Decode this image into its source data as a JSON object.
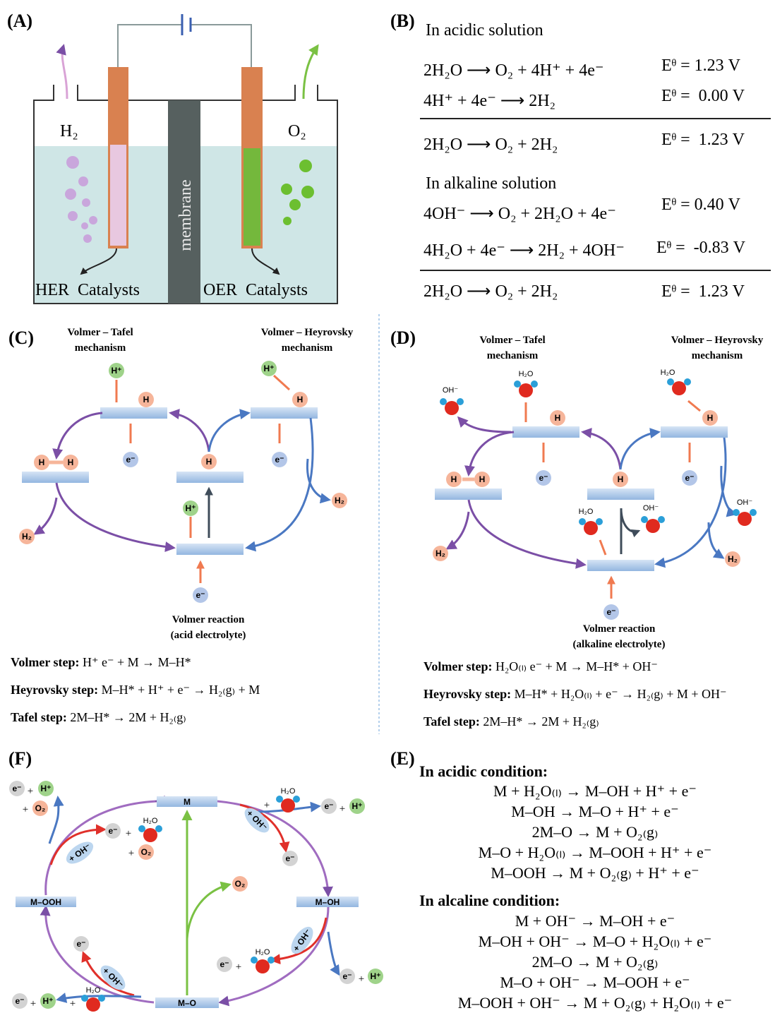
{
  "panel_a": {
    "label": "(A)",
    "h2": "H₂",
    "o2": "O₂",
    "membrane": "membrane",
    "her": "HER  Catalysts",
    "oer": "OER  Catalysts"
  },
  "panel_b": {
    "label": "(B)",
    "acidic_heading": "In acidic solution",
    "acidic": [
      {
        "equation": "2H₂O ⟶ O₂ + 4H⁺ + 4e⁻",
        "potential": "Eᶿ = 1.23 V"
      },
      {
        "equation": "4H⁺ + 4e⁻ ⟶ 2H₂",
        "potential": "Eᶿ =  0.00 V"
      }
    ],
    "acidic_total": {
      "equation": "2H₂O ⟶ O₂ + 2H₂",
      "potential": "Eᶿ =  1.23 V"
    },
    "alkaline_heading": "In alkaline solution",
    "alkaline": [
      {
        "equation": "4OH⁻ ⟶ O₂ + 2H₂O + 4e⁻",
        "potential": "Eᶿ = 0.40 V"
      },
      {
        "equation": "4H₂O + 4e⁻ ⟶ 2H₂ + 4OH⁻",
        "potential": "Eᶿ =  -0.83 V"
      }
    ],
    "alkaline_total": {
      "equation": "2H₂O ⟶ O₂ + 2H₂",
      "potential": "Eᶿ =  1.23 V"
    }
  },
  "panel_c": {
    "label": "(C)",
    "tafel": [
      "Volmer – Tafel",
      "mechanism"
    ],
    "heyrovsky": [
      "Volmer – Heyrovsky",
      "mechanism"
    ],
    "volmer": [
      "Volmer reaction",
      "(acid electrolyte)"
    ],
    "badges": [
      "H⁺",
      "H",
      "e⁻",
      "H",
      "H",
      "H",
      "H⁺",
      "H",
      "e⁻",
      "H₂",
      "H₂",
      "H⁺",
      "e⁻"
    ],
    "steps": [
      {
        "label": "Volmer step:",
        "equation": "H⁺ e⁻ + M → M–H*"
      },
      {
        "label": "Heyrovsky step:",
        "equation": "M–H* + H⁺ + e⁻ → H₂₍g₎ + M"
      },
      {
        "label": "Tafel step:",
        "equation": "2M–H* → 2M + H₂₍g₎"
      }
    ]
  },
  "panel_d": {
    "label": "(D)",
    "tafel": [
      "Volmer – Tafel",
      "mechanism"
    ],
    "heyrovsky": [
      "Volmer – Heyrovsky",
      "mechanism"
    ],
    "volmer": [
      "Volmer reaction",
      "(alkaline electrolyte)"
    ],
    "badges": [
      "H",
      "e⁻",
      "H",
      "H",
      "H",
      "H",
      "e⁻",
      "H₂",
      "H₂",
      "e⁻"
    ],
    "molecules": [
      "OH⁻",
      "H₂O",
      "H₂O",
      "OH⁻",
      "H₂O",
      "OH⁻"
    ],
    "steps": [
      {
        "label": "Volmer step:",
        "equation": "H₂O₍ₗ₎ e⁻ + M → M–H* + OH⁻"
      },
      {
        "label": "Heyrovsky step:",
        "equation": "M–H* + H₂O₍ₗ₎ + e⁻ → H₂₍g₎ + M + OH⁻"
      },
      {
        "label": "Tafel step:",
        "equation": "2M–H* → 2M + H₂₍g₎"
      }
    ]
  },
  "panel_e": {
    "label": "(E)",
    "acidic_heading": "In acidic condition:",
    "acidic": [
      "M + H₂O₍ₗ₎ → M–OH + H⁺ + e⁻",
      "M–OH → M–O + H⁺ + e⁻",
      "2M–O → M + O₂₍g₎",
      "M–O + H₂O₍ₗ₎ → M–OOH + H⁺ + e⁻",
      "M–OOH → M + O₂₍g₎ + H⁺ + e⁻"
    ],
    "alkaline_heading": "In alcaline condition:",
    "alkaline": [
      "M + OH⁻ → M–OH + e⁻",
      "M–OH + OH⁻ → M–O + H₂O₍ₗ₎ + e⁻",
      "2M–O → M + O₂₍g₎",
      "M–O + OH⁻ → M–OOH + e⁻",
      "M–OOH + OH⁻ → M + O₂₍g₎ + H₂O₍ₗ₎ + e⁻"
    ]
  },
  "panel_f": {
    "label": "(F)",
    "states": [
      "M",
      "M–OOH",
      "M–OH",
      "M–O"
    ],
    "items": [
      "e⁻",
      "+",
      "H⁺",
      "+",
      "O₂",
      "+ OH⁻",
      "e⁻",
      "+",
      "H₂O",
      "+",
      "O₂",
      "O₂",
      "+",
      "H₂O",
      "e⁻",
      "+",
      "H⁺",
      "+ OH⁻",
      "e⁻",
      "+ OH⁻",
      "e⁻",
      "+",
      "H₂O",
      "e⁻",
      "+",
      "H⁺",
      "e⁻",
      "+ OH⁻",
      "e⁻",
      "+",
      "H⁺",
      "+",
      "H₂O"
    ]
  }
}
